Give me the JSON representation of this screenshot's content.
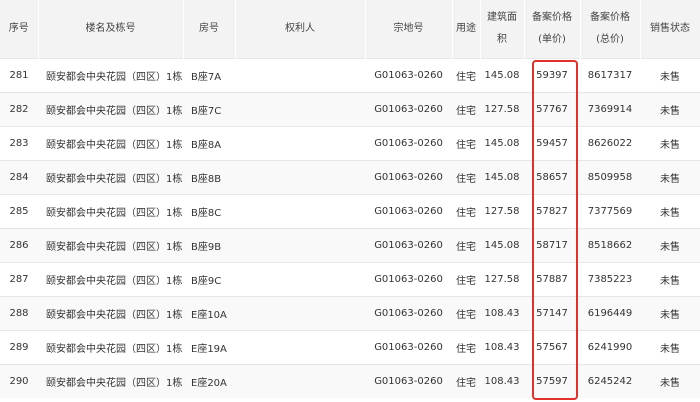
{
  "table": {
    "header": [
      "序号",
      "楼名及栋号",
      "房号",
      "权利人",
      "宗地号",
      "用途",
      "建筑面积",
      "备案价格(单价)",
      "备案价格(总价)",
      "销售状态"
    ],
    "rows": [
      [
        "281",
        "颐安都会中央花园（四区）1栋",
        "B座7A",
        "",
        "G01063-0260",
        "住宅",
        "145.08",
        "59397",
        "8617317",
        "未售"
      ],
      [
        "282",
        "颐安都会中央花园（四区）1栋",
        "B座7C",
        "",
        "G01063-0260",
        "住宅",
        "127.58",
        "57767",
        "7369914",
        "未售"
      ],
      [
        "283",
        "颐安都会中央花园（四区）1栋",
        "B座8A",
        "",
        "G01063-0260",
        "住宅",
        "145.08",
        "59457",
        "8626022",
        "未售"
      ],
      [
        "284",
        "颐安都会中央花园（四区）1栋",
        "B座8B",
        "",
        "G01063-0260",
        "住宅",
        "145.08",
        "58657",
        "8509958",
        "未售"
      ],
      [
        "285",
        "颐安都会中央花园（四区）1栋",
        "B座8C",
        "",
        "G01063-0260",
        "住宅",
        "127.58",
        "57827",
        "7377569",
        "未售"
      ],
      [
        "286",
        "颐安都会中央花园（四区）1栋",
        "B座9B",
        "",
        "G01063-0260",
        "住宅",
        "145.08",
        "58717",
        "8518662",
        "未售"
      ],
      [
        "287",
        "颐安都会中央花园（四区）1栋",
        "B座9C",
        "",
        "G01063-0260",
        "住宅",
        "127.58",
        "57887",
        "7385223",
        "未售"
      ],
      [
        "288",
        "颐安都会中央花园（四区）1栋",
        "E座10A",
        "",
        "G01063-0260",
        "住宅",
        "108.43",
        "57147",
        "6196449",
        "未售"
      ],
      [
        "289",
        "颐安都会中央花园（四区）1栋",
        "E座19A",
        "",
        "G01063-0260",
        "住宅",
        "108.43",
        "57567",
        "6241990",
        "未售"
      ],
      [
        "290",
        "颐安都会中央花园（四区）1栋",
        "E座20A",
        "",
        "G01063-0260",
        "住宅",
        "108.43",
        "57597",
        "6245242",
        "未售"
      ]
    ]
  }
}
